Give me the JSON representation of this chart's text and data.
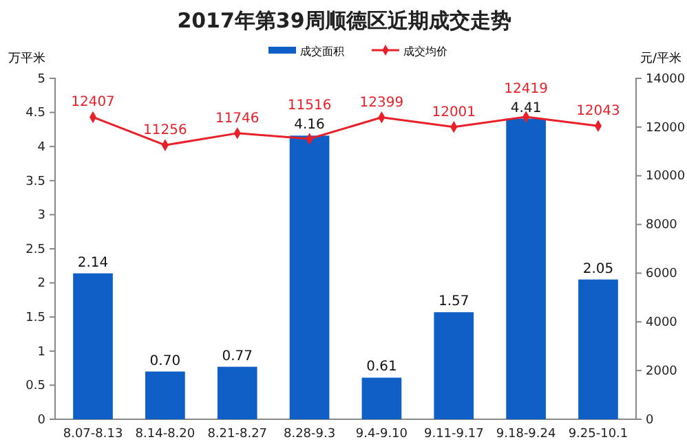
{
  "chart_data": {
    "type": "bar",
    "title": "2017年第39周顺德区近期成交走势",
    "ylabel": "万平米",
    "y2label": "元/平米",
    "categories": [
      "8.07-8.13",
      "8.14-8.20",
      "8.21-8.27",
      "8.28-9.3",
      "9.4-9.10",
      "9.11-9.17",
      "9.18-9.24",
      "9.25-10.1"
    ],
    "series": [
      {
        "name": "成交面积",
        "color": "#0f5fc6",
        "values": [
          2.14,
          0.7,
          0.77,
          4.16,
          0.61,
          1.57,
          4.41,
          2.05
        ],
        "value_labels": [
          "2.14",
          "0.70",
          "0.77",
          "4.16",
          "0.61",
          "1.57",
          "4.41",
          "2.05"
        ]
      },
      {
        "name": "成交均价",
        "type": "line",
        "axis": "y2",
        "color": "#e8202a",
        "marker": "diamond",
        "values": [
          12407,
          11256,
          11746,
          11516,
          12399,
          12001,
          12419,
          12043
        ]
      }
    ],
    "data_labels": true,
    "ylim": [
      0,
      5
    ],
    "yticks": [
      0,
      0.5,
      1,
      1.5,
      2,
      2.5,
      3,
      3.5,
      4,
      4.5,
      5
    ],
    "y2lim": [
      0,
      14000
    ],
    "y2ticks": [
      0,
      2000,
      4000,
      6000,
      8000,
      10000,
      12000,
      14000
    ],
    "legend": "top",
    "grid": false
  }
}
